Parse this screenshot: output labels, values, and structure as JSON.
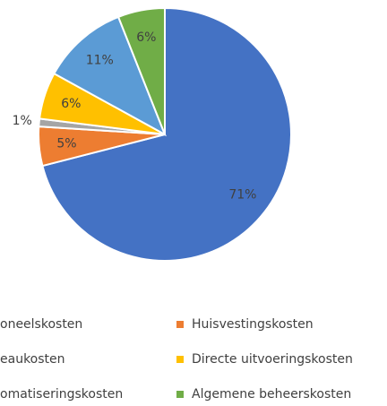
{
  "chart_data": {
    "type": "pie",
    "categories": [
      "oneelskosten",
      "Huisvestingskosten",
      "eaukosten",
      "Directe uitvoeringskosten",
      "omatiseringskosten",
      "Algemene beheerskosten"
    ],
    "values": [
      71,
      5,
      1,
      6,
      11,
      6
    ],
    "value_labels": [
      "71%",
      "5%",
      "1%",
      "6%",
      "11%",
      "6%"
    ],
    "colors": [
      "#4472c4",
      "#ed7d31",
      "#a5a5a5",
      "#ffc000",
      "#5b9bd5",
      "#70ad47"
    ]
  }
}
